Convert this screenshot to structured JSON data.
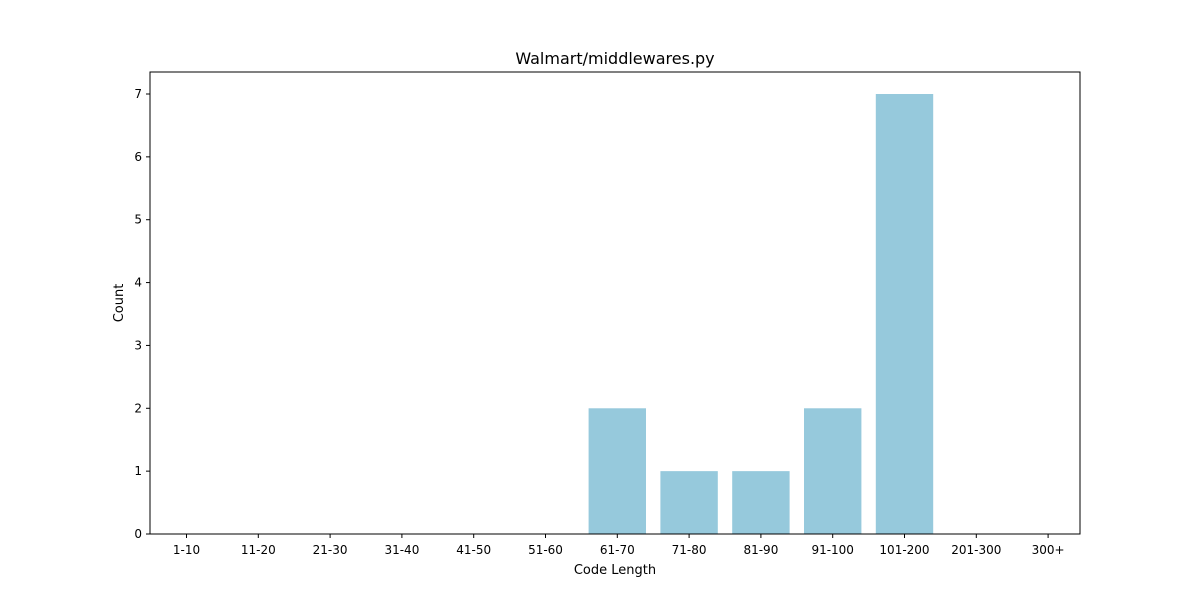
{
  "chart_data": {
    "type": "bar",
    "title": "Walmart/middlewares.py",
    "xlabel": "Code Length",
    "ylabel": "Count",
    "categories": [
      "1-10",
      "11-20",
      "21-30",
      "31-40",
      "41-50",
      "51-60",
      "61-70",
      "71-80",
      "81-90",
      "91-100",
      "101-200",
      "201-300",
      "300+"
    ],
    "values": [
      0,
      0,
      0,
      0,
      0,
      0,
      2,
      1,
      1,
      2,
      7,
      0,
      0
    ],
    "ylim": [
      0,
      7.35
    ],
    "yticks": [
      0,
      1,
      2,
      3,
      4,
      5,
      6,
      7
    ],
    "grid": false,
    "legend": "none",
    "bar_color": "#96c9dc",
    "axis_color": "#000000",
    "background": "#ffffff"
  }
}
